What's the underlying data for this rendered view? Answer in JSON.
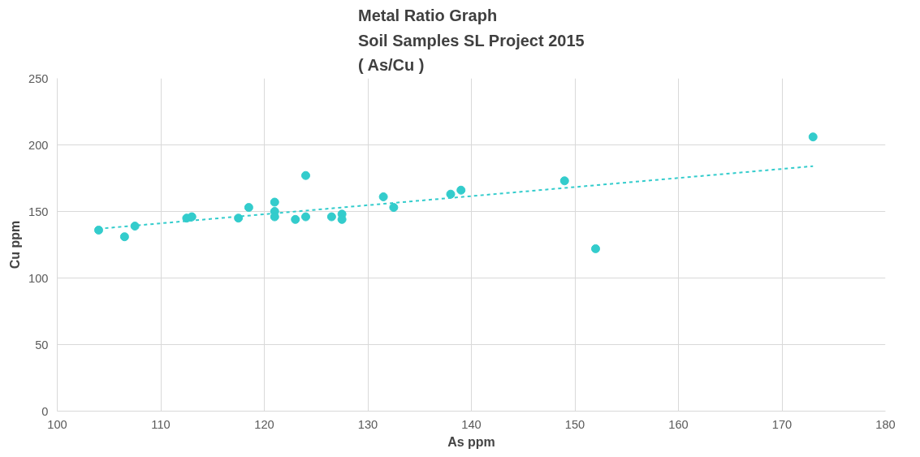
{
  "chart_data": {
    "type": "scatter",
    "title": "Metal Ratio Graph\nSoil Samples SL Project 2015\n( As/Cu )",
    "xlabel": "As ppm",
    "ylabel": "Cu ppm",
    "xlim": [
      100,
      180
    ],
    "xticks": [
      100,
      110,
      120,
      130,
      140,
      150,
      160,
      170,
      180
    ],
    "ylim": [
      0,
      250
    ],
    "yticks": [
      0,
      50,
      100,
      150,
      200,
      250
    ],
    "grid": true,
    "series": [
      {
        "marker": "circle",
        "color": "#33cccc",
        "x": [
          104,
          106.5,
          107.5,
          112.5,
          113,
          117.5,
          118.5,
          121,
          121,
          121,
          123,
          124,
          124,
          126.5,
          127.5,
          127.5,
          131.5,
          132.5,
          138,
          139,
          149,
          152,
          173
        ],
        "values": [
          136,
          131,
          139,
          145,
          146,
          145,
          153,
          157,
          150,
          146,
          144,
          177,
          146,
          146,
          148,
          144,
          161,
          153,
          163,
          166,
          173,
          122,
          206
        ]
      },
      {
        "type": "line",
        "line_style": "dashed",
        "color": "#33cccc",
        "x": [
          104,
          173
        ],
        "values": [
          137,
          184
        ]
      }
    ]
  }
}
